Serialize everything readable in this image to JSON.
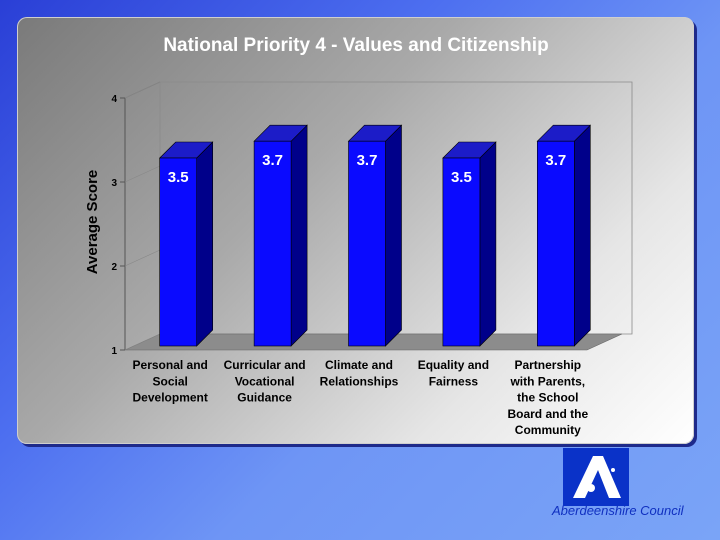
{
  "chart_data": {
    "type": "bar",
    "title": "National Priority 4 - Values and Citizenship",
    "ylabel": "Average Score",
    "xlabel": "",
    "ylim": [
      1,
      4
    ],
    "yticks": [
      "1",
      "2",
      "3",
      "4"
    ],
    "grid": false,
    "categories": [
      [
        "Personal and",
        "Social",
        "Development"
      ],
      [
        "Curricular and",
        "Vocational",
        "Guidance"
      ],
      [
        "Climate and",
        "Relationships"
      ],
      [
        "Equality and",
        "Fairness"
      ],
      [
        "Partnership",
        "with Parents,",
        "the School",
        "Board and the",
        "Community"
      ]
    ],
    "values": [
      3.5,
      3.7,
      3.7,
      3.5,
      3.7
    ],
    "value_labels": [
      "3.5",
      "3.7",
      "3.7",
      "3.5",
      "3.7"
    ],
    "colors": {
      "bar_front": "#0a0aff",
      "bar_side": "#00008a",
      "bar_top": "#1c1cc8"
    }
  },
  "footer": {
    "organization": "Aberdeenshire Council",
    "logo_letter": "A"
  }
}
